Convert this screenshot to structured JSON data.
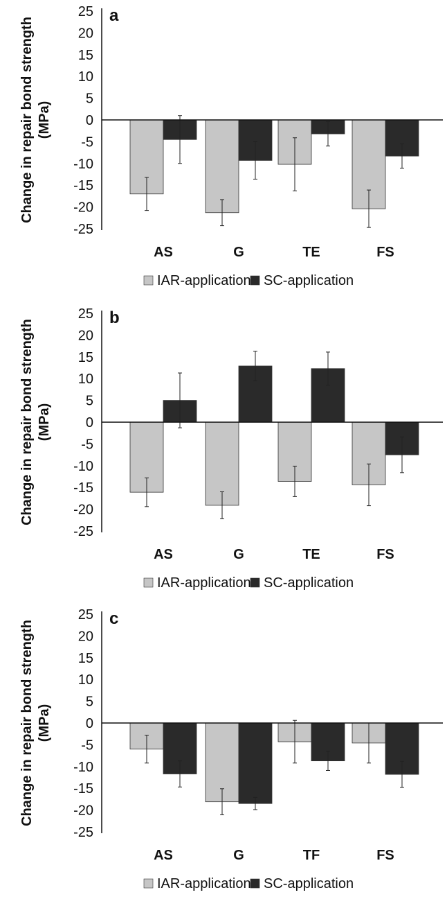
{
  "colors": {
    "iar": "#c6c6c6",
    "sc": "#2a2a2a",
    "axis": "#111111"
  },
  "chart_data": [
    {
      "type": "bar",
      "panel_label": "a",
      "ylabel_line1": "Change in repair bond strength",
      "ylabel_line2": "(MPa)",
      "ylim": [
        -25,
        25
      ],
      "yticks": [
        "25",
        "20",
        "15",
        "10",
        "5",
        "0",
        "-5",
        "-10",
        "-15",
        "-20",
        "-25"
      ],
      "categories": [
        "AS",
        "G",
        "TE",
        "FS"
      ],
      "series": [
        {
          "name": "IAR-application",
          "values": [
            -17,
            -21.3,
            -10.2,
            -20.4
          ],
          "errors": [
            3.8,
            3.0,
            6.1,
            4.3
          ]
        },
        {
          "name": "SC-application",
          "values": [
            -4.5,
            -9.3,
            -3.2,
            -8.3
          ],
          "errors": [
            5.5,
            4.3,
            2.8,
            2.8
          ]
        }
      ]
    },
    {
      "type": "bar",
      "panel_label": "b",
      "ylabel_line1": "Change in repair bond strength",
      "ylabel_line2": "(MPa)",
      "ylim": [
        -25,
        25
      ],
      "yticks": [
        "25",
        "20",
        "15",
        "10",
        "5",
        "0",
        "-5",
        "-10",
        "-15",
        "-20",
        "-25"
      ],
      "categories": [
        "AS",
        "G",
        "TE",
        "FS"
      ],
      "series": [
        {
          "name": "IAR-application",
          "values": [
            -16.1,
            -19.1,
            -13.6,
            -14.4
          ],
          "errors": [
            3.3,
            3.1,
            3.5,
            4.8
          ]
        },
        {
          "name": "SC-application",
          "values": [
            5.0,
            12.9,
            12.3,
            -7.5
          ],
          "errors": [
            6.3,
            3.4,
            3.8,
            4.1
          ]
        }
      ]
    },
    {
      "type": "bar",
      "panel_label": "c",
      "ylabel_line1": "Change in repair bond strength",
      "ylabel_line2": "(MPa)",
      "ylim": [
        -25,
        25
      ],
      "yticks": [
        "25",
        "20",
        "15",
        "10",
        "5",
        "0",
        "-5",
        "-10",
        "-15",
        "-20",
        "-25"
      ],
      "categories": [
        "AS",
        "G",
        "TF",
        "FS"
      ],
      "series": [
        {
          "name": "IAR-application",
          "values": [
            -6.0,
            -18.1,
            -4.3,
            -4.6
          ],
          "errors": [
            3.2,
            3.0,
            4.9,
            4.6
          ]
        },
        {
          "name": "SC-application",
          "values": [
            -11.7,
            -18.5,
            -8.7,
            -11.8
          ],
          "errors": [
            3.0,
            1.4,
            2.2,
            3.0
          ]
        }
      ]
    }
  ]
}
